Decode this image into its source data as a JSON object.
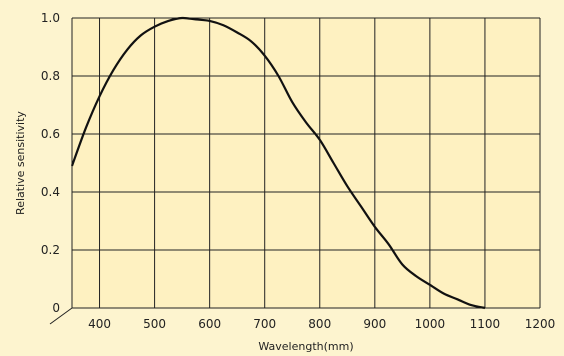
{
  "colors": {
    "background": "#fdf4cf",
    "plot_area": "#fef1c1",
    "grid": "#222222",
    "curve": "#111111"
  },
  "chart_data": {
    "type": "line",
    "title": "",
    "xlabel": "Wavelength(mm)",
    "ylabel": "Relative sensitivity",
    "xlim": [
      350,
      1200
    ],
    "ylim": [
      0,
      1.0
    ],
    "x_ticks": [
      400,
      500,
      600,
      700,
      800,
      900,
      1000,
      1100,
      1200
    ],
    "y_ticks": [
      0,
      0.2,
      0.4,
      0.6,
      0.8,
      1.0
    ],
    "y_tick_labels": [
      "0",
      "0.2",
      "0.4",
      "0.6",
      "0.8",
      "1.0"
    ],
    "grid": true,
    "series": [
      {
        "x": [
          350,
          375,
          400,
          425,
          450,
          475,
          500,
          525,
          550,
          575,
          600,
          625,
          650,
          675,
          700,
          725,
          750,
          775,
          800,
          825,
          850,
          875,
          900,
          925,
          950,
          975,
          1000,
          1025,
          1050,
          1075,
          1100
        ],
        "y": [
          0.49,
          0.62,
          0.73,
          0.82,
          0.89,
          0.94,
          0.97,
          0.99,
          1.0,
          0.995,
          0.99,
          0.975,
          0.95,
          0.92,
          0.87,
          0.8,
          0.71,
          0.64,
          0.58,
          0.5,
          0.42,
          0.35,
          0.28,
          0.22,
          0.15,
          0.11,
          0.08,
          0.05,
          0.03,
          0.01,
          0.0
        ]
      }
    ]
  }
}
